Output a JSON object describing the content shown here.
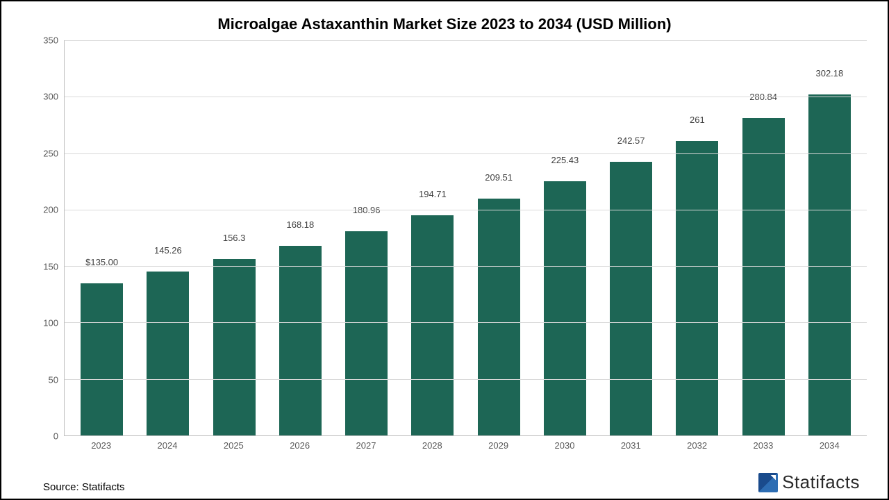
{
  "chart": {
    "type": "bar",
    "title": "Microalgae Astaxanthin Market Size 2023 to 2034 (USD Million)",
    "title_fontsize": 22,
    "categories": [
      "2023",
      "2024",
      "2025",
      "2026",
      "2027",
      "2028",
      "2029",
      "2030",
      "2031",
      "2032",
      "2033",
      "2034"
    ],
    "values": [
      135.0,
      145.26,
      156.3,
      168.18,
      180.96,
      194.71,
      209.51,
      225.43,
      242.57,
      261,
      280.84,
      302.18
    ],
    "value_labels": [
      "$135.00",
      "145.26",
      "156.3",
      "168.18",
      "180.96",
      "194.71",
      "209.51",
      "225.43",
      "242.57",
      "261",
      "280.84",
      "302.18"
    ],
    "bar_color": "#1d6655",
    "ylim": [
      0,
      350
    ],
    "ytick_step": 50,
    "y_ticks": [
      0,
      50,
      100,
      150,
      200,
      250,
      300,
      350
    ],
    "grid_color": "#d9d9d9",
    "axis_color": "#bfbfbf",
    "background_color": "#ffffff",
    "tick_label_color": "#595959",
    "tick_label_fontsize": 13,
    "value_label_color": "#404040",
    "value_label_fontsize": 13,
    "bar_width_ratio": 0.64
  },
  "footer": {
    "source_label": "Source: Statifacts",
    "brand_name": "Statifacts",
    "brand_color": "#2a2a2a",
    "logo_color_a": "#1a4b8c",
    "logo_color_b": "#2d6db3"
  }
}
